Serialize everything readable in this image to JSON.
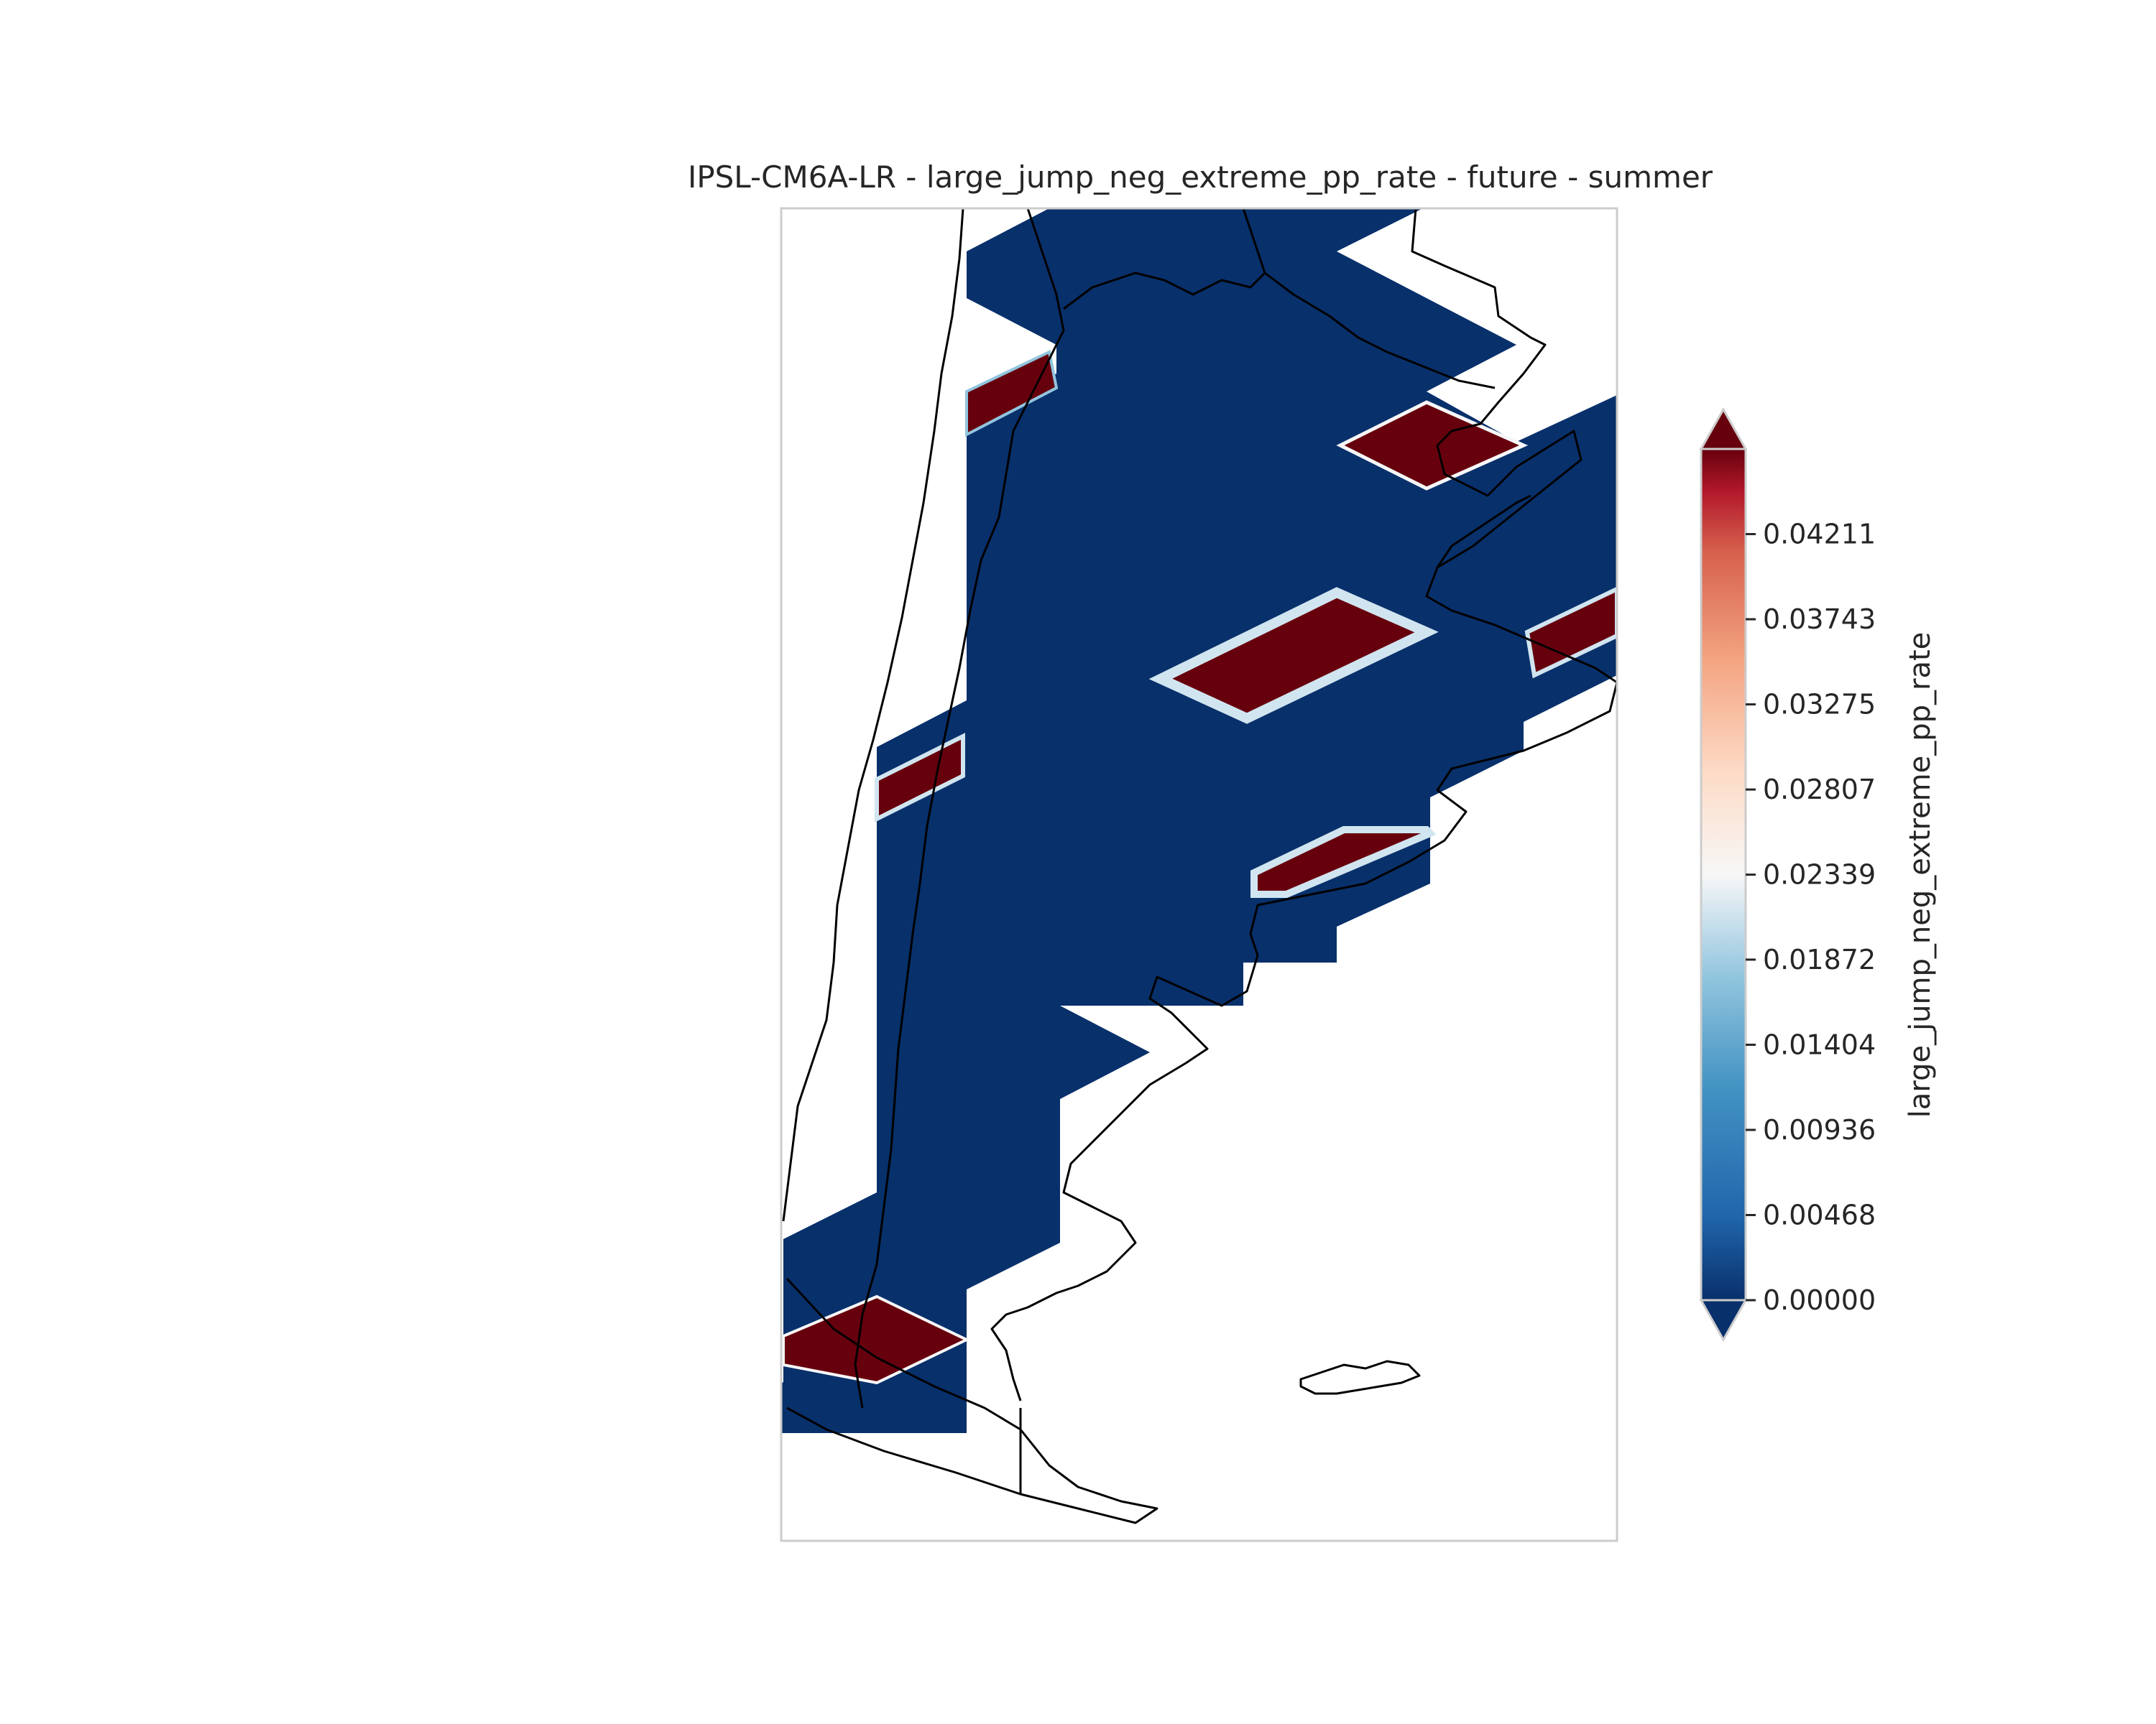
{
  "title": "IPSL-CM6A-LR - large_jump_neg_extreme_pp_rate - future - summer",
  "colorbar": {
    "label": "large_jump_neg_extreme_pp_rate",
    "ticks": [
      "0.00000",
      "0.00468",
      "0.00936",
      "0.01404",
      "0.01872",
      "0.02339",
      "0.02807",
      "0.03275",
      "0.03743",
      "0.04211"
    ],
    "colormap": "RdBu_r",
    "min_color": "#08306b",
    "max_color": "#67000d",
    "extend": "both"
  },
  "chart_data": {
    "type": "heatmap",
    "title": "IPSL-CM6A-LR - large_jump_neg_extreme_pp_rate - future - summer",
    "colorbar_label": "large_jump_neg_extreme_pp_rate",
    "vmin": 0.0,
    "vmax": 0.04679,
    "tick_values": [
      0.0,
      0.00468,
      0.00936,
      0.01404,
      0.01872,
      0.02339,
      0.02807,
      0.03275,
      0.03743,
      0.04211
    ],
    "region": "southern South America (Argentina)",
    "dominant_value": 0.0,
    "high_cells_value": 0.04679
  }
}
